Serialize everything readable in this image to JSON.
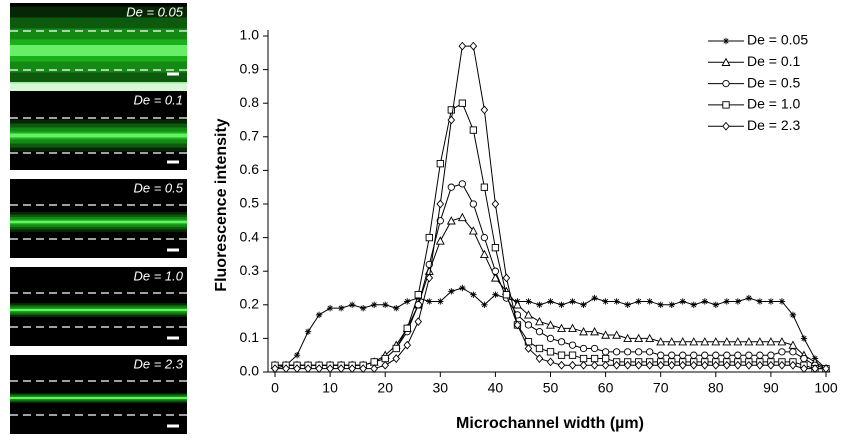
{
  "panels": [
    {
      "label": "De = 0.05"
    },
    {
      "label": "De = 0.1"
    },
    {
      "label": "De = 0.5"
    },
    {
      "label": "De = 1.0"
    },
    {
      "label": "De = 2.3"
    }
  ],
  "chart_data": {
    "type": "line",
    "xlabel": "Microchannel width (µm)",
    "ylabel": "Fluorescence intensity",
    "xlim": [
      0,
      100
    ],
    "ylim": [
      0,
      1
    ],
    "xticks": [
      0,
      10,
      20,
      30,
      40,
      50,
      60,
      70,
      80,
      90,
      100
    ],
    "yticks": [
      {
        "value": 0,
        "label": "0.0"
      },
      0.1,
      0.2,
      0.3,
      0.4,
      0.5,
      0.6,
      0.7,
      0.8,
      0.9,
      {
        "value": 1,
        "label": "1.0"
      }
    ],
    "legend": "upper right",
    "x": [
      0,
      2,
      4,
      6,
      8,
      10,
      12,
      14,
      16,
      18,
      20,
      22,
      24,
      26,
      28,
      30,
      32,
      34,
      36,
      38,
      40,
      42,
      44,
      46,
      48,
      50,
      52,
      54,
      56,
      58,
      60,
      62,
      64,
      66,
      68,
      70,
      72,
      74,
      76,
      78,
      80,
      82,
      84,
      86,
      88,
      90,
      92,
      94,
      96,
      98,
      100
    ],
    "series": [
      {
        "name": "De = 0.05",
        "color": "#000000",
        "marker": "star",
        "values": [
          0.01,
          0.02,
          0.05,
          0.12,
          0.17,
          0.19,
          0.19,
          0.2,
          0.19,
          0.2,
          0.2,
          0.19,
          0.21,
          0.22,
          0.21,
          0.21,
          0.24,
          0.25,
          0.23,
          0.2,
          0.23,
          0.22,
          0.21,
          0.21,
          0.2,
          0.21,
          0.2,
          0.21,
          0.2,
          0.22,
          0.21,
          0.21,
          0.2,
          0.21,
          0.21,
          0.2,
          0.2,
          0.21,
          0.2,
          0.21,
          0.2,
          0.21,
          0.21,
          0.22,
          0.21,
          0.21,
          0.21,
          0.17,
          0.1,
          0.04,
          0.01
        ]
      },
      {
        "name": "De = 0.1",
        "color": "#000000",
        "marker": "triangle",
        "values": [
          0.02,
          0.02,
          0.02,
          0.02,
          0.02,
          0.02,
          0.02,
          0.02,
          0.02,
          0.03,
          0.05,
          0.08,
          0.13,
          0.2,
          0.3,
          0.39,
          0.45,
          0.46,
          0.42,
          0.35,
          0.28,
          0.24,
          0.2,
          0.17,
          0.15,
          0.14,
          0.13,
          0.13,
          0.12,
          0.12,
          0.11,
          0.11,
          0.1,
          0.1,
          0.1,
          0.09,
          0.09,
          0.09,
          0.09,
          0.09,
          0.09,
          0.09,
          0.09,
          0.09,
          0.09,
          0.09,
          0.09,
          0.08,
          0.05,
          0.03,
          0.01
        ]
      },
      {
        "name": "De = 0.5",
        "color": "#000000",
        "marker": "circle",
        "values": [
          0.02,
          0.02,
          0.02,
          0.02,
          0.02,
          0.02,
          0.02,
          0.02,
          0.02,
          0.03,
          0.04,
          0.07,
          0.12,
          0.2,
          0.32,
          0.45,
          0.55,
          0.56,
          0.5,
          0.4,
          0.3,
          0.22,
          0.17,
          0.14,
          0.12,
          0.1,
          0.09,
          0.08,
          0.07,
          0.07,
          0.06,
          0.06,
          0.06,
          0.06,
          0.06,
          0.05,
          0.05,
          0.05,
          0.05,
          0.05,
          0.05,
          0.05,
          0.05,
          0.05,
          0.05,
          0.05,
          0.06,
          0.06,
          0.04,
          0.02,
          0.01
        ]
      },
      {
        "name": "De = 1.0",
        "color": "#000000",
        "marker": "square",
        "values": [
          0.02,
          0.02,
          0.02,
          0.02,
          0.02,
          0.02,
          0.02,
          0.02,
          0.02,
          0.03,
          0.04,
          0.07,
          0.13,
          0.23,
          0.4,
          0.62,
          0.78,
          0.8,
          0.72,
          0.55,
          0.37,
          0.23,
          0.14,
          0.09,
          0.07,
          0.06,
          0.05,
          0.05,
          0.04,
          0.04,
          0.04,
          0.03,
          0.03,
          0.03,
          0.03,
          0.03,
          0.03,
          0.03,
          0.03,
          0.03,
          0.03,
          0.03,
          0.03,
          0.03,
          0.03,
          0.03,
          0.03,
          0.03,
          0.02,
          0.01,
          0.01
        ]
      },
      {
        "name": "De = 2.3",
        "color": "#000000",
        "marker": "diamond",
        "values": [
          0.01,
          0.01,
          0.01,
          0.01,
          0.01,
          0.01,
          0.01,
          0.01,
          0.01,
          0.01,
          0.02,
          0.04,
          0.08,
          0.15,
          0.28,
          0.5,
          0.75,
          0.97,
          0.97,
          0.78,
          0.5,
          0.28,
          0.14,
          0.07,
          0.04,
          0.03,
          0.02,
          0.02,
          0.02,
          0.02,
          0.02,
          0.02,
          0.02,
          0.02,
          0.02,
          0.02,
          0.02,
          0.02,
          0.02,
          0.02,
          0.02,
          0.02,
          0.02,
          0.02,
          0.02,
          0.02,
          0.02,
          0.02,
          0.01,
          0.01,
          0.01
        ]
      }
    ]
  }
}
